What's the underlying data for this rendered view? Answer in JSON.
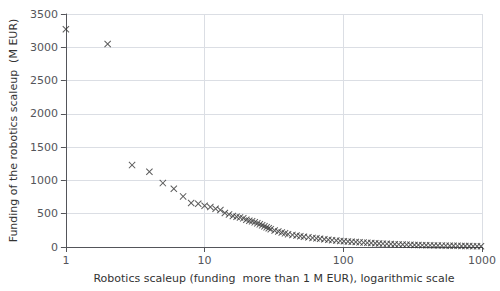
{
  "chart_data": {
    "type": "scatter",
    "xlabel": "Robotics scaleup (funding  more than 1 M EUR), logarithmic scale",
    "ylabel": "Funding of the robotics scaleup  (M EUR)",
    "x": [
      1.0,
      2.0,
      3.0,
      4.0,
      5.0,
      6.0,
      7.0,
      8.0,
      9.0,
      10.0,
      11.0,
      12.0,
      13.0,
      14.0,
      15.0,
      16.0,
      17.0,
      18.0,
      19.0,
      20.0,
      21.0,
      22.0,
      23.0,
      24.0,
      25.0,
      26.0,
      27.0,
      28.0,
      29.0,
      30.0,
      32.0,
      34.0,
      36.0,
      38.0,
      40.0,
      43.0,
      46.0,
      49.0,
      52.0,
      56.0,
      60.0,
      64.0,
      68.0,
      73.0,
      78.0,
      83.0,
      89.0,
      95.0,
      101.0,
      108.0,
      115.0,
      123.0,
      131.0,
      140.0,
      149.0,
      159.0,
      170.0,
      181.0,
      193.0,
      206.0,
      220.0,
      235.0,
      251.0,
      268.0,
      286.0,
      305.0,
      326.0,
      348.0,
      371.0,
      396.0,
      423.0,
      451.0,
      481.0,
      514.0,
      548.0,
      585.0,
      624.0,
      666.0,
      711.0,
      758.0,
      809.0,
      863.0,
      921.0,
      983.0
    ],
    "values": [
      3270,
      3050,
      1230,
      1130,
      960,
      875,
      760,
      660,
      650,
      620,
      600,
      575,
      555,
      510,
      490,
      465,
      455,
      445,
      430,
      410,
      395,
      385,
      370,
      355,
      340,
      325,
      310,
      295,
      282,
      268,
      248,
      232,
      218,
      205,
      193,
      182,
      172,
      163,
      154,
      145,
      137,
      130,
      123,
      116,
      109,
      103,
      98,
      92,
      87,
      82,
      78,
      74,
      70,
      66,
      62,
      59,
      56,
      53,
      50,
      47,
      44,
      42,
      39,
      37,
      35,
      33,
      31,
      29,
      28,
      26,
      25,
      23,
      22,
      21,
      20,
      19,
      18,
      17,
      16,
      15,
      14,
      13,
      13,
      12
    ],
    "xlim": [
      1,
      1000
    ],
    "xticks": [
      1,
      10,
      100,
      1000
    ],
    "ylim": [
      0,
      3500
    ],
    "yticks": [
      0,
      500,
      1000,
      1500,
      2000,
      2500,
      3000,
      3500
    ],
    "log": "x",
    "grid": true,
    "color": "#333333",
    "marker": "x"
  }
}
